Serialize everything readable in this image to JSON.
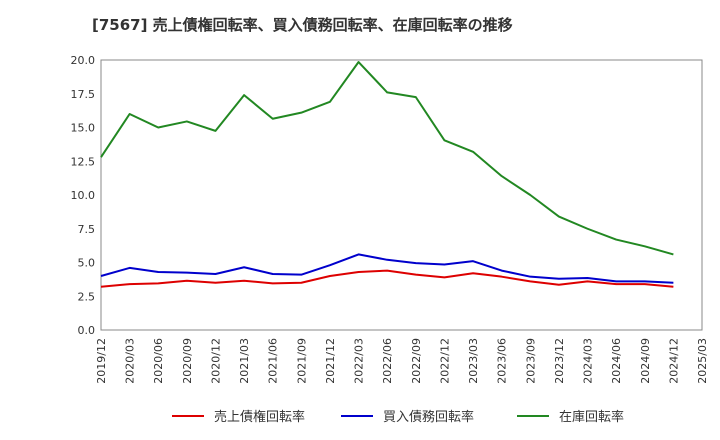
{
  "chart_data": {
    "type": "line",
    "title": "[7567]  売上債権回転率、買入債務回転率、在庫回転率の推移",
    "xlabel": "",
    "ylabel": "",
    "ylim": [
      0,
      20
    ],
    "yticks": [
      0.0,
      2.5,
      5.0,
      7.5,
      10.0,
      12.5,
      15.0,
      17.5,
      20.0
    ],
    "ytick_labels": [
      "0.0",
      "2.5",
      "5.0",
      "7.5",
      "10.0",
      "12.5",
      "15.0",
      "17.5",
      "20.0"
    ],
    "categories": [
      "2019/12",
      "2020/03",
      "2020/06",
      "2020/09",
      "2020/12",
      "2021/03",
      "2021/06",
      "2021/09",
      "2021/12",
      "2022/03",
      "2022/06",
      "2022/09",
      "2022/12",
      "2023/03",
      "2023/06",
      "2023/09",
      "2023/12",
      "2024/03",
      "2024/06",
      "2024/09",
      "2024/12",
      "2025/03"
    ],
    "grid": true,
    "legend_position": "bottom",
    "series": [
      {
        "name": "売上債権回転率",
        "color": "#dd0000",
        "values": [
          3.2,
          3.4,
          3.45,
          3.65,
          3.5,
          3.65,
          3.45,
          3.5,
          4.0,
          4.3,
          4.4,
          4.1,
          3.9,
          4.2,
          3.95,
          3.6,
          3.35,
          3.6,
          3.4,
          3.4,
          3.2,
          null
        ]
      },
      {
        "name": "買入債務回転率",
        "color": "#0000cc",
        "values": [
          4.0,
          4.6,
          4.3,
          4.25,
          4.15,
          4.65,
          4.15,
          4.1,
          4.8,
          5.6,
          5.2,
          4.95,
          4.85,
          5.1,
          4.4,
          3.95,
          3.8,
          3.85,
          3.6,
          3.6,
          3.5,
          null
        ]
      },
      {
        "name": "在庫回転率",
        "color": "#228822",
        "values": [
          12.8,
          16.0,
          15.0,
          15.45,
          14.75,
          17.4,
          15.65,
          16.1,
          16.9,
          19.85,
          17.6,
          17.25,
          14.05,
          13.2,
          11.4,
          10.0,
          8.4,
          7.5,
          6.7,
          6.2,
          5.6,
          null
        ]
      }
    ]
  }
}
